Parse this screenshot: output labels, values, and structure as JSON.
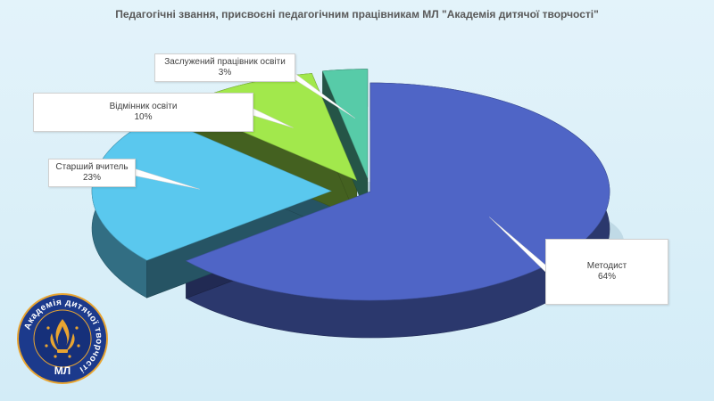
{
  "chart_data": {
    "type": "pie",
    "title": "Педагогічні звання, присвоєні педагогічним працівникам МЛ \"Академія дитячої творчості\"",
    "slices": [
      {
        "label": "Методист",
        "value": 64,
        "value_label": "64%",
        "color": "#4f65c6"
      },
      {
        "label": "Старший вчитель",
        "value": 23,
        "value_label": "23%",
        "color": "#5ac8ee"
      },
      {
        "label": "Відмінник освіти",
        "value": 10,
        "value_label": "10%",
        "color": "#a2e84c"
      },
      {
        "label": "Заслужений працівник освіти",
        "value": 3,
        "value_label": "3%",
        "color": "#57cba8"
      }
    ],
    "style": "3d-exploded",
    "legend": "none"
  },
  "logo": {
    "ring_text": "Академія дитячої творчості",
    "abbr": "МЛ",
    "colors": {
      "ring": "#1c3a8c",
      "accent": "#e9a531"
    }
  }
}
